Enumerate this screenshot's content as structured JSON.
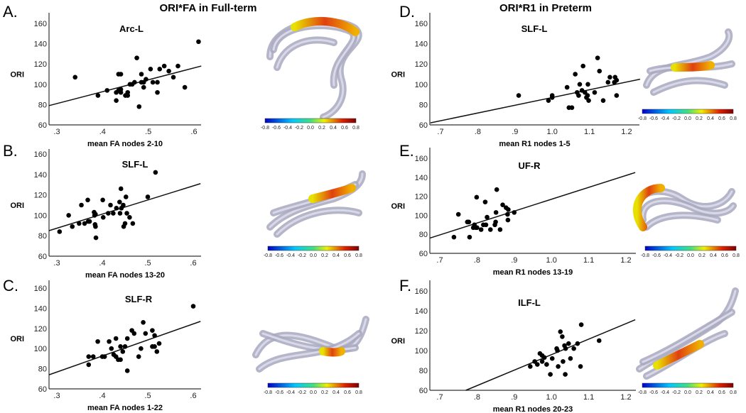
{
  "figure": {
    "left_title": "ORI*FA in Full-term",
    "right_title": "ORI*R1 in Preterm",
    "colorbar_ticks": [
      "-0.8",
      "-0.6",
      "-0.4",
      "-0.2",
      "0.0",
      "0.2",
      "0.4",
      "0.6",
      "0.8"
    ],
    "colorbar_colors": [
      "#0000c8",
      "#00c8ff",
      "#40e080",
      "#f0f000",
      "#e02000",
      "#800000"
    ],
    "point_color": "#000000",
    "tract_color": "#a8a8c0"
  },
  "chart_data": [
    {
      "panel": "A.",
      "type": "scatter",
      "title": "Arc-L",
      "xlabel": "mean FA nodes 2-10",
      "ylabel": "ORI",
      "xticks": [
        ".3",
        ".4",
        ".5",
        ".6"
      ],
      "xtick_values": [
        0.3,
        0.4,
        0.5,
        0.6
      ],
      "yticks": [
        "60",
        "80",
        "100",
        "120",
        "140",
        "160"
      ],
      "ylim": [
        60,
        160
      ],
      "fit_line": [
        [
          0.283,
          79
        ],
        [
          0.616,
          118
        ]
      ],
      "points": [
        [
          0.34,
          107
        ],
        [
          0.39,
          89
        ],
        [
          0.41,
          94
        ],
        [
          0.43,
          92
        ],
        [
          0.43,
          84
        ],
        [
          0.435,
          110
        ],
        [
          0.44,
          110
        ],
        [
          0.435,
          94
        ],
        [
          0.44,
          92
        ],
        [
          0.44,
          95
        ],
        [
          0.45,
          89
        ],
        [
          0.455,
          89
        ],
        [
          0.455,
          92
        ],
        [
          0.46,
          100
        ],
        [
          0.465,
          100
        ],
        [
          0.47,
          102
        ],
        [
          0.475,
          126
        ],
        [
          0.48,
          78
        ],
        [
          0.485,
          102
        ],
        [
          0.485,
          110
        ],
        [
          0.49,
          97
        ],
        [
          0.49,
          102
        ],
        [
          0.495,
          105
        ],
        [
          0.505,
          115
        ],
        [
          0.51,
          102
        ],
        [
          0.52,
          102
        ],
        [
          0.52,
          92
        ],
        [
          0.525,
          115
        ],
        [
          0.535,
          118
        ],
        [
          0.545,
          113
        ],
        [
          0.555,
          107
        ],
        [
          0.565,
          118
        ],
        [
          0.58,
          97
        ],
        [
          0.61,
          142
        ]
      ]
    },
    {
      "panel": "B.",
      "type": "scatter",
      "title": "SLF-L",
      "xlabel": "mean FA nodes 13-20",
      "ylabel": "ORI",
      "xticks": [
        ".3",
        ".4",
        ".5",
        ".6"
      ],
      "xtick_values": [
        0.3,
        0.4,
        0.5,
        0.6
      ],
      "yticks": [
        "60",
        "80",
        "100",
        "120",
        "140",
        "160"
      ],
      "ylim": [
        60,
        160
      ],
      "fit_line": [
        [
          0.283,
          85
        ],
        [
          0.616,
          131
        ]
      ],
      "points": [
        [
          0.306,
          84
        ],
        [
          0.326,
          100
        ],
        [
          0.334,
          89
        ],
        [
          0.349,
          92
        ],
        [
          0.354,
          110
        ],
        [
          0.361,
          92
        ],
        [
          0.368,
          115
        ],
        [
          0.369,
          94
        ],
        [
          0.372,
          94
        ],
        [
          0.382,
          103
        ],
        [
          0.383,
          100
        ],
        [
          0.384,
          91
        ],
        [
          0.385,
          89
        ],
        [
          0.386,
          78
        ],
        [
          0.385,
          101
        ],
        [
          0.401,
          115
        ],
        [
          0.402,
          98
        ],
        [
          0.413,
          102
        ],
        [
          0.418,
          110
        ],
        [
          0.424,
          102
        ],
        [
          0.431,
          107
        ],
        [
          0.438,
          113
        ],
        [
          0.439,
          102
        ],
        [
          0.441,
          126
        ],
        [
          0.442,
          107
        ],
        [
          0.446,
          110
        ],
        [
          0.447,
          89
        ],
        [
          0.45,
          92
        ],
        [
          0.452,
          118
        ],
        [
          0.454,
          102
        ],
        [
          0.46,
          98
        ],
        [
          0.467,
          92
        ],
        [
          0.5,
          118
        ],
        [
          0.517,
          142
        ]
      ]
    },
    {
      "panel": "C.",
      "type": "scatter",
      "title": "SLF-R",
      "xlabel": "mean FA nodes 1-22",
      "ylabel": "ORI",
      "xticks": [
        ".3",
        ".4",
        ".5",
        ".6"
      ],
      "xtick_values": [
        0.3,
        0.4,
        0.5,
        0.6
      ],
      "yticks": [
        "60",
        "80",
        "100",
        "120",
        "140",
        "160"
      ],
      "ylim": [
        60,
        160
      ],
      "fit_line": [
        [
          0.283,
          74
        ],
        [
          0.616,
          127
        ]
      ],
      "points": [
        [
          0.37,
          92
        ],
        [
          0.37,
          84
        ],
        [
          0.38,
          92
        ],
        [
          0.39,
          107
        ],
        [
          0.4,
          92
        ],
        [
          0.405,
          92
        ],
        [
          0.415,
          107
        ],
        [
          0.42,
          100
        ],
        [
          0.425,
          94
        ],
        [
          0.43,
          92
        ],
        [
          0.43,
          110
        ],
        [
          0.435,
          89
        ],
        [
          0.44,
          89
        ],
        [
          0.445,
          97
        ],
        [
          0.44,
          102
        ],
        [
          0.45,
          102
        ],
        [
          0.455,
          110
        ],
        [
          0.455,
          78
        ],
        [
          0.465,
          118
        ],
        [
          0.47,
          115
        ],
        [
          0.48,
          92
        ],
        [
          0.485,
          100
        ],
        [
          0.49,
          126
        ],
        [
          0.495,
          115
        ],
        [
          0.51,
          118
        ],
        [
          0.51,
          102
        ],
        [
          0.515,
          113
        ],
        [
          0.515,
          102
        ],
        [
          0.52,
          97
        ],
        [
          0.525,
          105
        ],
        [
          0.6,
          142
        ]
      ]
    },
    {
      "panel": "D.",
      "type": "scatter",
      "title": "SLF-L",
      "xlabel": "mean R1 nodes 1-5",
      "ylabel": "ORI",
      "xticks": [
        ".7",
        ".8",
        ".9",
        "1.0",
        "1.1",
        "1.2"
      ],
      "xtick_values": [
        0.7,
        0.8,
        0.9,
        1.0,
        1.1,
        1.2
      ],
      "yticks": [
        "60",
        "80",
        "100",
        "120",
        "140",
        "160"
      ],
      "ylim": [
        60,
        160
      ],
      "fit_line": [
        [
          0.673,
          62
        ],
        [
          1.236,
          105
        ]
      ],
      "points": [
        [
          0.91,
          89
        ],
        [
          0.99,
          84
        ],
        [
          1.0,
          89
        ],
        [
          1.0,
          87
        ],
        [
          1.04,
          97
        ],
        [
          1.045,
          77
        ],
        [
          1.053,
          77
        ],
        [
          1.062,
          110
        ],
        [
          1.067,
          92
        ],
        [
          1.071,
          89
        ],
        [
          1.074,
          100
        ],
        [
          1.08,
          94
        ],
        [
          1.083,
          118
        ],
        [
          1.088,
          92
        ],
        [
          1.092,
          87
        ],
        [
          1.095,
          89
        ],
        [
          1.096,
          100
        ],
        [
          1.098,
          84
        ],
        [
          1.114,
          92
        ],
        [
          1.122,
          126
        ],
        [
          1.127,
          113
        ],
        [
          1.137,
          84
        ],
        [
          1.15,
          102
        ],
        [
          1.155,
          107
        ],
        [
          1.167,
          102
        ],
        [
          1.169,
          107
        ],
        [
          1.173,
          104
        ],
        [
          1.173,
          89
        ]
      ]
    },
    {
      "panel": "E.",
      "type": "scatter",
      "title": "UF-R",
      "xlabel": "mean R1 nodes 13-19",
      "ylabel": "ORI",
      "xticks": [
        ".7",
        ".8",
        ".9",
        "1.0",
        "1.1",
        "1.2"
      ],
      "xtick_values": [
        0.7,
        0.8,
        0.9,
        1.0,
        1.1,
        1.2
      ],
      "yticks": [
        "60",
        "80",
        "100",
        "120",
        "140",
        "160"
      ],
      "ylim": [
        60,
        160
      ],
      "fit_line": [
        [
          0.673,
          76
        ],
        [
          1.225,
          145
        ]
      ],
      "points": [
        [
          0.738,
          77
        ],
        [
          0.75,
          101
        ],
        [
          0.774,
          93
        ],
        [
          0.778,
          93
        ],
        [
          0.78,
          77
        ],
        [
          0.79,
          87
        ],
        [
          0.793,
          90
        ],
        [
          0.797,
          87
        ],
        [
          0.799,
          119
        ],
        [
          0.8,
          87
        ],
        [
          0.811,
          85
        ],
        [
          0.817,
          90
        ],
        [
          0.822,
          114
        ],
        [
          0.824,
          90
        ],
        [
          0.827,
          98
        ],
        [
          0.836,
          85
        ],
        [
          0.848,
          90
        ],
        [
          0.85,
          93
        ],
        [
          0.851,
          103
        ],
        [
          0.853,
          127
        ],
        [
          0.862,
          85
        ],
        [
          0.869,
          111
        ],
        [
          0.878,
          108
        ],
        [
          0.882,
          101
        ],
        [
          0.883,
          95
        ],
        [
          0.884,
          106
        ],
        [
          0.9,
          103
        ]
      ]
    },
    {
      "panel": "F.",
      "type": "scatter",
      "title": "ILF-L",
      "xlabel": "mean R1 nodes 20-23",
      "ylabel": "ORI",
      "xticks": [
        ".7",
        ".8",
        ".9",
        "1.0",
        "1.1",
        "1.2"
      ],
      "xtick_values": [
        0.7,
        0.8,
        0.9,
        1.0,
        1.1,
        1.2
      ],
      "yticks": [
        "60",
        "80",
        "100",
        "120",
        "140",
        "160"
      ],
      "ylim": [
        60,
        160
      ],
      "fit_line": [
        [
          0.77,
          60
        ],
        [
          1.225,
          131
        ]
      ],
      "points": [
        [
          0.943,
          84
        ],
        [
          0.955,
          89
        ],
        [
          0.962,
          86
        ],
        [
          0.969,
          97
        ],
        [
          0.975,
          95
        ],
        [
          0.975,
          89
        ],
        [
          0.981,
          93
        ],
        [
          0.987,
          86
        ],
        [
          0.997,
          76
        ],
        [
          1.002,
          92
        ],
        [
          1.014,
          102
        ],
        [
          1.016,
          100
        ],
        [
          1.018,
          84
        ],
        [
          1.024,
          119
        ],
        [
          1.029,
          114
        ],
        [
          1.031,
          89
        ],
        [
          1.035,
          105
        ],
        [
          1.038,
          102
        ],
        [
          1.037,
          76
        ],
        [
          1.046,
          107
        ],
        [
          1.051,
          92
        ],
        [
          1.06,
          102
        ],
        [
          1.07,
          107
        ],
        [
          1.078,
          84
        ],
        [
          1.08,
          126
        ],
        [
          1.128,
          110
        ]
      ]
    }
  ]
}
